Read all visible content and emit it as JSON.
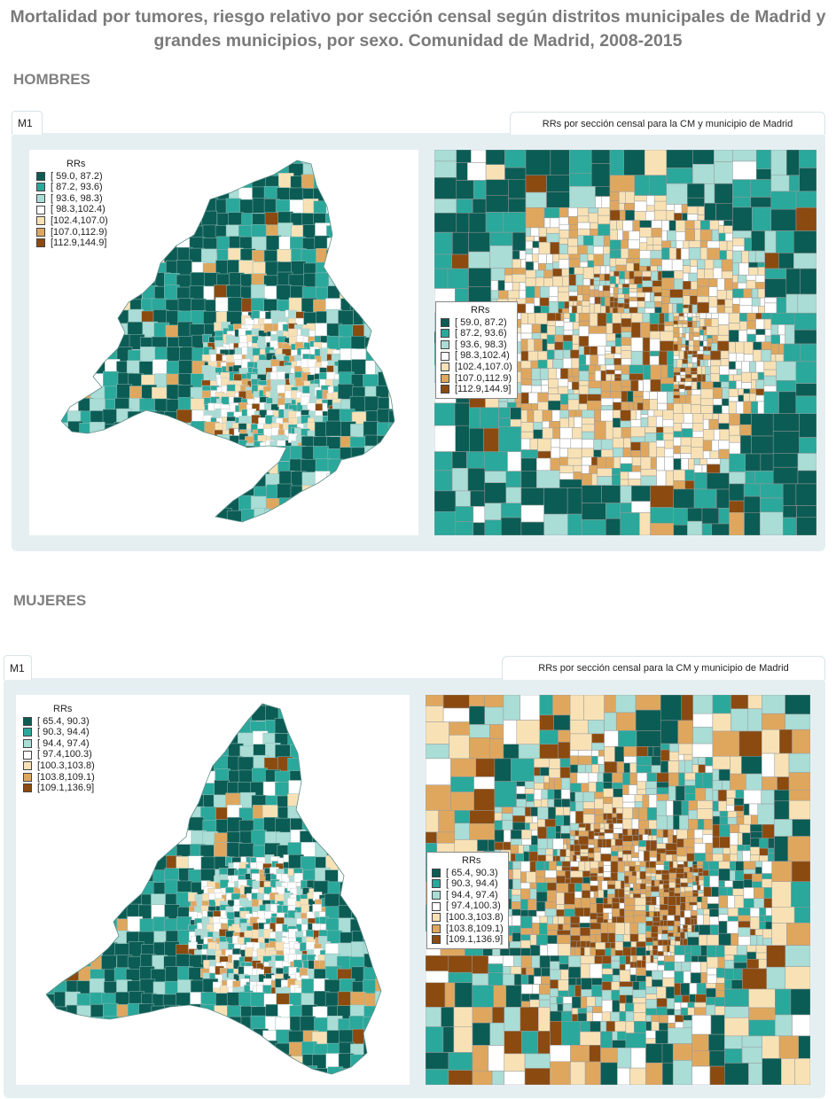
{
  "title": "Mortalidad por tumores, riesgo relativo por sección censal según distritos municipales de Madrid y grandes municipios, por sexo. Comunidad de Madrid, 2008-2015",
  "colors": [
    "#0b5c54",
    "#2aa89b",
    "#a9ddd6",
    "#ffffff",
    "#f8e2b5",
    "#dfa75e",
    "#8b4a0f"
  ],
  "sections": [
    {
      "label": "HOMBRES",
      "tab": "M1",
      "right_tab": "RRs por sección censal para la CM y municipio de Madrid",
      "legend_title": "RRs",
      "legend": [
        "[ 59.0, 87.2)",
        "[ 87.2, 93.6)",
        "[ 93.6, 98.3)",
        "[ 98.3,102.4)",
        "[102.4,107.0)",
        "[107.0,112.9)",
        "[112.9,144.9]"
      ]
    },
    {
      "label": "MUJERES",
      "tab": "M1",
      "right_tab": "RRs por sección censal para la CM y municipio de Madrid",
      "legend_title": "RRs",
      "legend": [
        "[ 65.4, 90.3)",
        "[ 90.3, 94.4)",
        "[ 94.4, 97.4)",
        "[ 97.4,100.3)",
        "[100.3,103.8)",
        "[103.8,109.1)",
        "[109.1,136.9]"
      ]
    }
  ]
}
